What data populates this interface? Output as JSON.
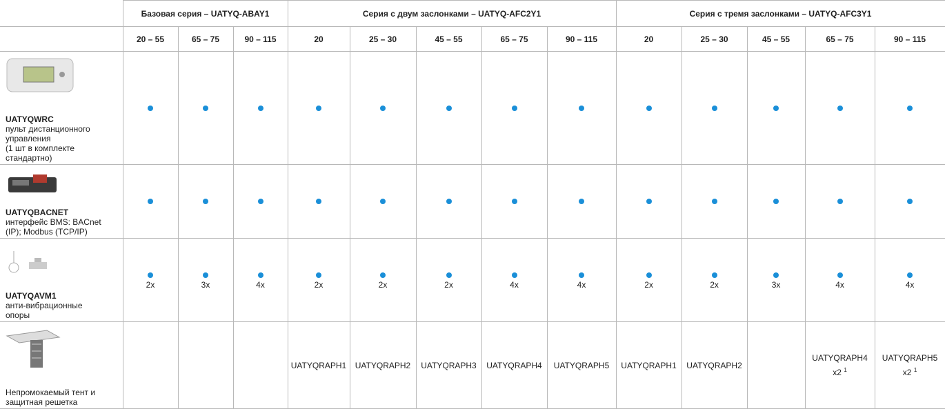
{
  "header": {
    "groups": [
      {
        "label": "Базовая серия – UATYQ-ABAY1",
        "span": 3
      },
      {
        "label": "Серия с двум заслонками – UATYQ-AFC2Y1",
        "span": 5
      },
      {
        "label": "Серия с тремя заслонками – UATYQ-AFC3Y1",
        "span": 5
      }
    ],
    "sizes": [
      "20 – 55",
      "65 – 75",
      "90 – 115",
      "20",
      "25 – 30",
      "45 – 55",
      "65 – 75",
      "90 – 115",
      "20",
      "25 – 30",
      "45 – 55",
      "65 – 75",
      "90 – 115"
    ]
  },
  "rows": [
    {
      "code": "UATYQWRC",
      "description": [
        "пульт дистанционного",
        "управления",
        "(1 шт в комплекте",
        "стандартно)"
      ],
      "cells": [
        {
          "dot": true
        },
        {
          "dot": true
        },
        {
          "dot": true
        },
        {
          "dot": true
        },
        {
          "dot": true
        },
        {
          "dot": true
        },
        {
          "dot": true
        },
        {
          "dot": true
        },
        {
          "dot": true
        },
        {
          "dot": true
        },
        {
          "dot": true
        },
        {
          "dot": true
        },
        {
          "dot": true
        }
      ]
    },
    {
      "code": "UATYQBACNET",
      "description": [
        "интерфейс BMS: BACnet",
        "(IP); Modbus (TCP/IP)"
      ],
      "cells": [
        {
          "dot": true
        },
        {
          "dot": true
        },
        {
          "dot": true
        },
        {
          "dot": true
        },
        {
          "dot": true
        },
        {
          "dot": true
        },
        {
          "dot": true
        },
        {
          "dot": true
        },
        {
          "dot": true
        },
        {
          "dot": true
        },
        {
          "dot": true
        },
        {
          "dot": true
        },
        {
          "dot": true
        }
      ]
    },
    {
      "code": "UATYQAVM1",
      "description": [
        "анти-вибрационные",
        "опоры"
      ],
      "cells": [
        {
          "dot": true,
          "label": "2x"
        },
        {
          "dot": true,
          "label": "3x"
        },
        {
          "dot": true,
          "label": "4x"
        },
        {
          "dot": true,
          "label": "2x"
        },
        {
          "dot": true,
          "label": "2x"
        },
        {
          "dot": true,
          "label": "2x"
        },
        {
          "dot": true,
          "label": "4x"
        },
        {
          "dot": true,
          "label": "4x"
        },
        {
          "dot": true,
          "label": "2x"
        },
        {
          "dot": true,
          "label": "2x"
        },
        {
          "dot": true,
          "label": "3x"
        },
        {
          "dot": true,
          "label": "4x"
        },
        {
          "dot": true,
          "label": "4x"
        }
      ]
    },
    {
      "description": [
        "Непромокаемый тент и",
        "защитная решетка"
      ],
      "cells": [
        null,
        null,
        null,
        {
          "label": "UATYQRAPH1"
        },
        {
          "label": "UATYQRAPH2"
        },
        {
          "label": "UATYQRAPH3"
        },
        {
          "label": "UATYQRAPH4"
        },
        {
          "label": "UATYQRAPH5"
        },
        {
          "label": "UATYQRAPH1"
        },
        {
          "label": "UATYQRAPH2"
        },
        null,
        {
          "label": "UATYQRAPH4",
          "qty": "x2",
          "note": "1"
        },
        {
          "label": "UATYQRAPH5",
          "qty": "x2",
          "note": "1"
        }
      ]
    }
  ]
}
